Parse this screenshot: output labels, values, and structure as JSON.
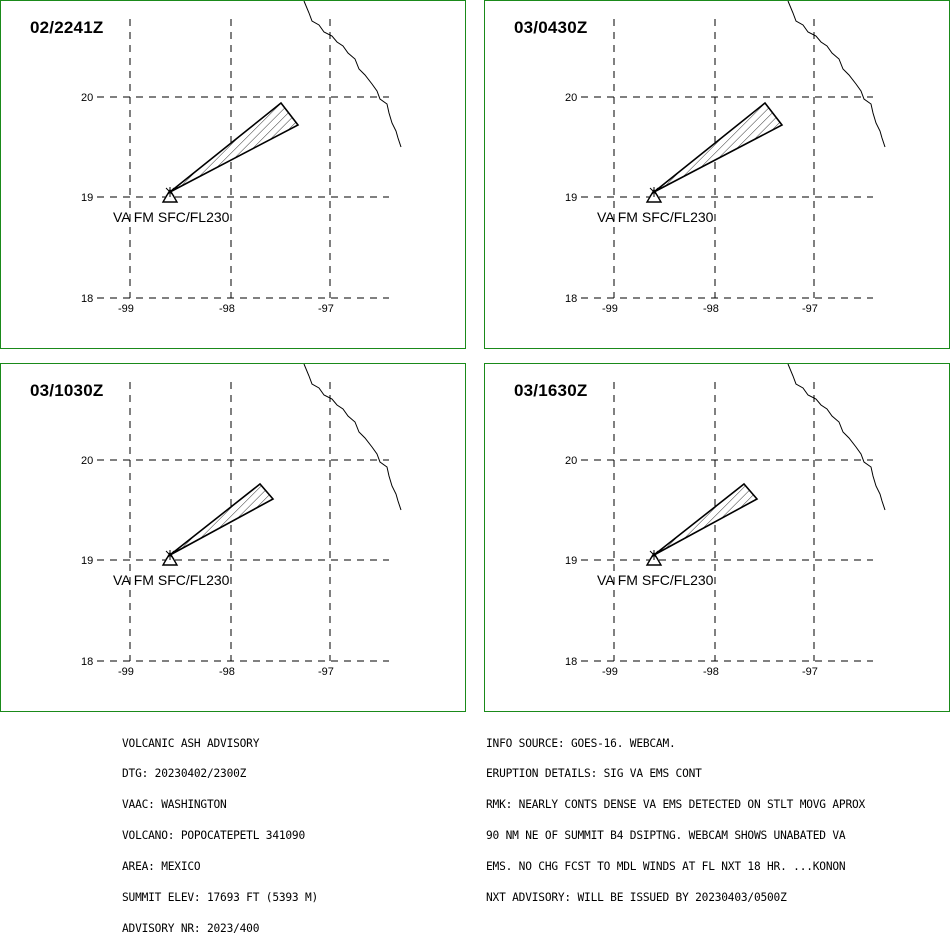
{
  "panels": [
    {
      "title": "02/2241Z",
      "va_label": "VA FM SFC/FL230",
      "plume_length": "long"
    },
    {
      "title": "03/0430Z",
      "va_label": "VA FM SFC/FL230",
      "plume_length": "long"
    },
    {
      "title": "03/1030Z",
      "va_label": "VA FM SFC/FL230",
      "plume_length": "medium"
    },
    {
      "title": "03/1630Z",
      "va_label": "VA FM SFC/FL230",
      "plume_length": "medium"
    }
  ],
  "axes": {
    "lat_labels": [
      "20",
      "19",
      "18"
    ],
    "lon_labels": [
      "-99",
      "-98",
      "-97"
    ]
  },
  "advisory_left": [
    "VOLCANIC ASH ADVISORY",
    "DTG: 20230402/2300Z",
    "VAAC: WASHINGTON",
    "VOLCANO: POPOCATEPETL 341090",
    "AREA: MEXICO",
    "SUMMIT ELEV: 17693 FT (5393 M)",
    "ADVISORY NR: 2023/400"
  ],
  "advisory_right": [
    "INFO SOURCE: GOES-16. WEBCAM.",
    "ERUPTION DETAILS: SIG VA EMS CONT",
    "RMK: NEARLY CONTS DENSE VA EMS DETECTED ON STLT MOVG APROX",
    "90 NM NE OF SUMMIT B4 DSIPTNG. WEBCAM SHOWS UNABATED VA",
    "EMS. NO CHG FCST TO MDL WINDS AT FL NXT 18 HR. ...KONON",
    "NXT ADVISORY: WILL BE ISSUED BY 20230403/0500Z"
  ],
  "colors": {
    "frame": "#1a8a1a",
    "lines": "#000000",
    "background": "#ffffff"
  }
}
